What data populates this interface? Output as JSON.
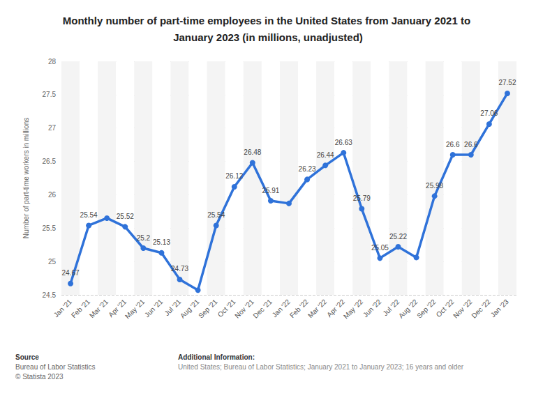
{
  "chart_data": {
    "type": "line",
    "title": "Monthly number of part-time employees in the United States from January 2021 to January 2023 (in millions, unadjusted)",
    "y_label": "Number of part-time workers in millions",
    "categories": [
      "Jan '21",
      "Feb '21",
      "Mar '21",
      "Apr '21",
      "May '21",
      "Jun '21",
      "Jul '21",
      "Aug '21",
      "Sep '21",
      "Oct '21",
      "Nov '21",
      "Dec '21",
      "Jan '22",
      "Feb '22",
      "Mar '22",
      "Apr '22",
      "May '22",
      "Jun '22",
      "Jul '22",
      "Aug '22",
      "Sep '22",
      "Oct '22",
      "Nov '22",
      "Dec '22",
      "Jan '23"
    ],
    "values": [
      24.67,
      25.54,
      25.65,
      25.52,
      25.2,
      25.13,
      24.73,
      24.57,
      25.54,
      26.12,
      26.48,
      25.91,
      25.87,
      26.23,
      26.44,
      26.63,
      25.79,
      25.05,
      25.22,
      25.06,
      25.98,
      26.6,
      26.6,
      27.06,
      27.52
    ],
    "value_labels": [
      "24.67",
      "25.54",
      null,
      "25.52",
      "25.2",
      "25.13",
      "24.73",
      null,
      "25.54",
      "26.12",
      "26.48",
      "25.91",
      null,
      "26.23",
      "26.44",
      "26.63",
      "25.79",
      "25.05",
      "25.22",
      null,
      "25.98",
      "26.6",
      "26.6",
      "27.06",
      "27.52"
    ],
    "color": "#2f72d9",
    "marker": "circle",
    "ylim": [
      24.5,
      28
    ],
    "yticks": [
      24.5,
      25,
      25.5,
      26,
      26.5,
      27,
      27.5,
      28
    ],
    "grid": true,
    "data_labels": true,
    "source_title": "Source",
    "source": [
      "Bureau of Labor Statistics",
      "© Statista 2023"
    ],
    "info_title": "Additional Information:",
    "info": "United States; Bureau of Labor Statistics; January 2021 to January 2023; 16 years and older"
  }
}
